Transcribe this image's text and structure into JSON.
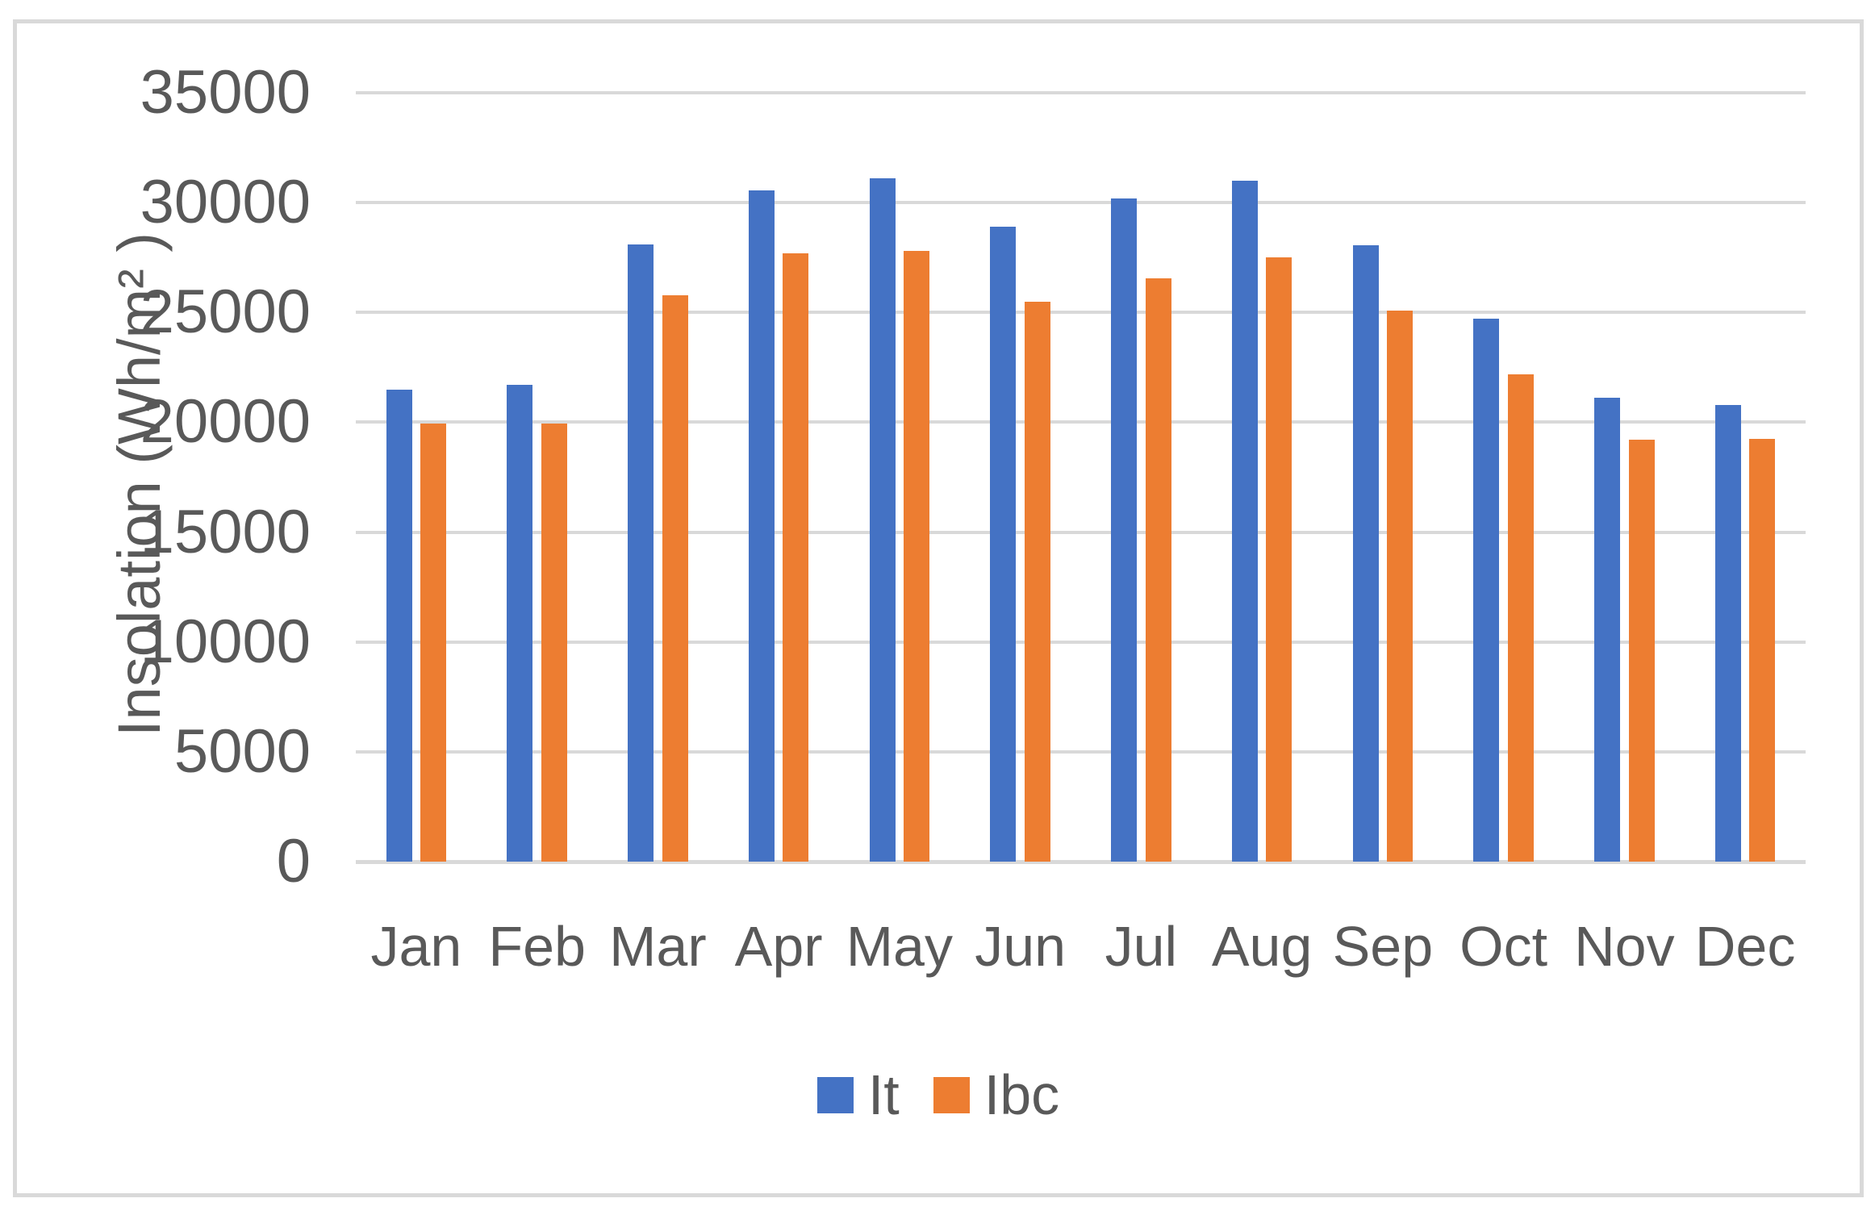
{
  "chart_data": {
    "type": "bar",
    "title": "",
    "ylabel": "Insolation (Wh/m² )",
    "xlabel": "",
    "categories": [
      "Jan",
      "Feb",
      "Mar",
      "Apr",
      "May",
      "Jun",
      "Jul",
      "Aug",
      "Sep",
      "Oct",
      "Nov",
      "Dec"
    ],
    "series": [
      {
        "name": "It",
        "color": "#4472C4",
        "values": [
          21500,
          21700,
          28100,
          30550,
          31100,
          28900,
          30200,
          31000,
          28050,
          24700,
          21100,
          20800
        ]
      },
      {
        "name": "Ibc",
        "color": "#ED7D31",
        "values": [
          19950,
          19950,
          25800,
          27700,
          27800,
          25500,
          26550,
          27500,
          25100,
          22200,
          19200,
          19250
        ]
      }
    ],
    "ylim": [
      0,
      35000
    ],
    "ytick_step": 5000,
    "yticks": [
      0,
      5000,
      10000,
      15000,
      20000,
      25000,
      30000,
      35000
    ],
    "grid": true,
    "legend_position": "bottom-center",
    "gridline_color": "#D9D9D9",
    "axis_text_color": "#595959",
    "frame_border_color": "#D9D9D9",
    "background_color": "#FFFFFF"
  }
}
